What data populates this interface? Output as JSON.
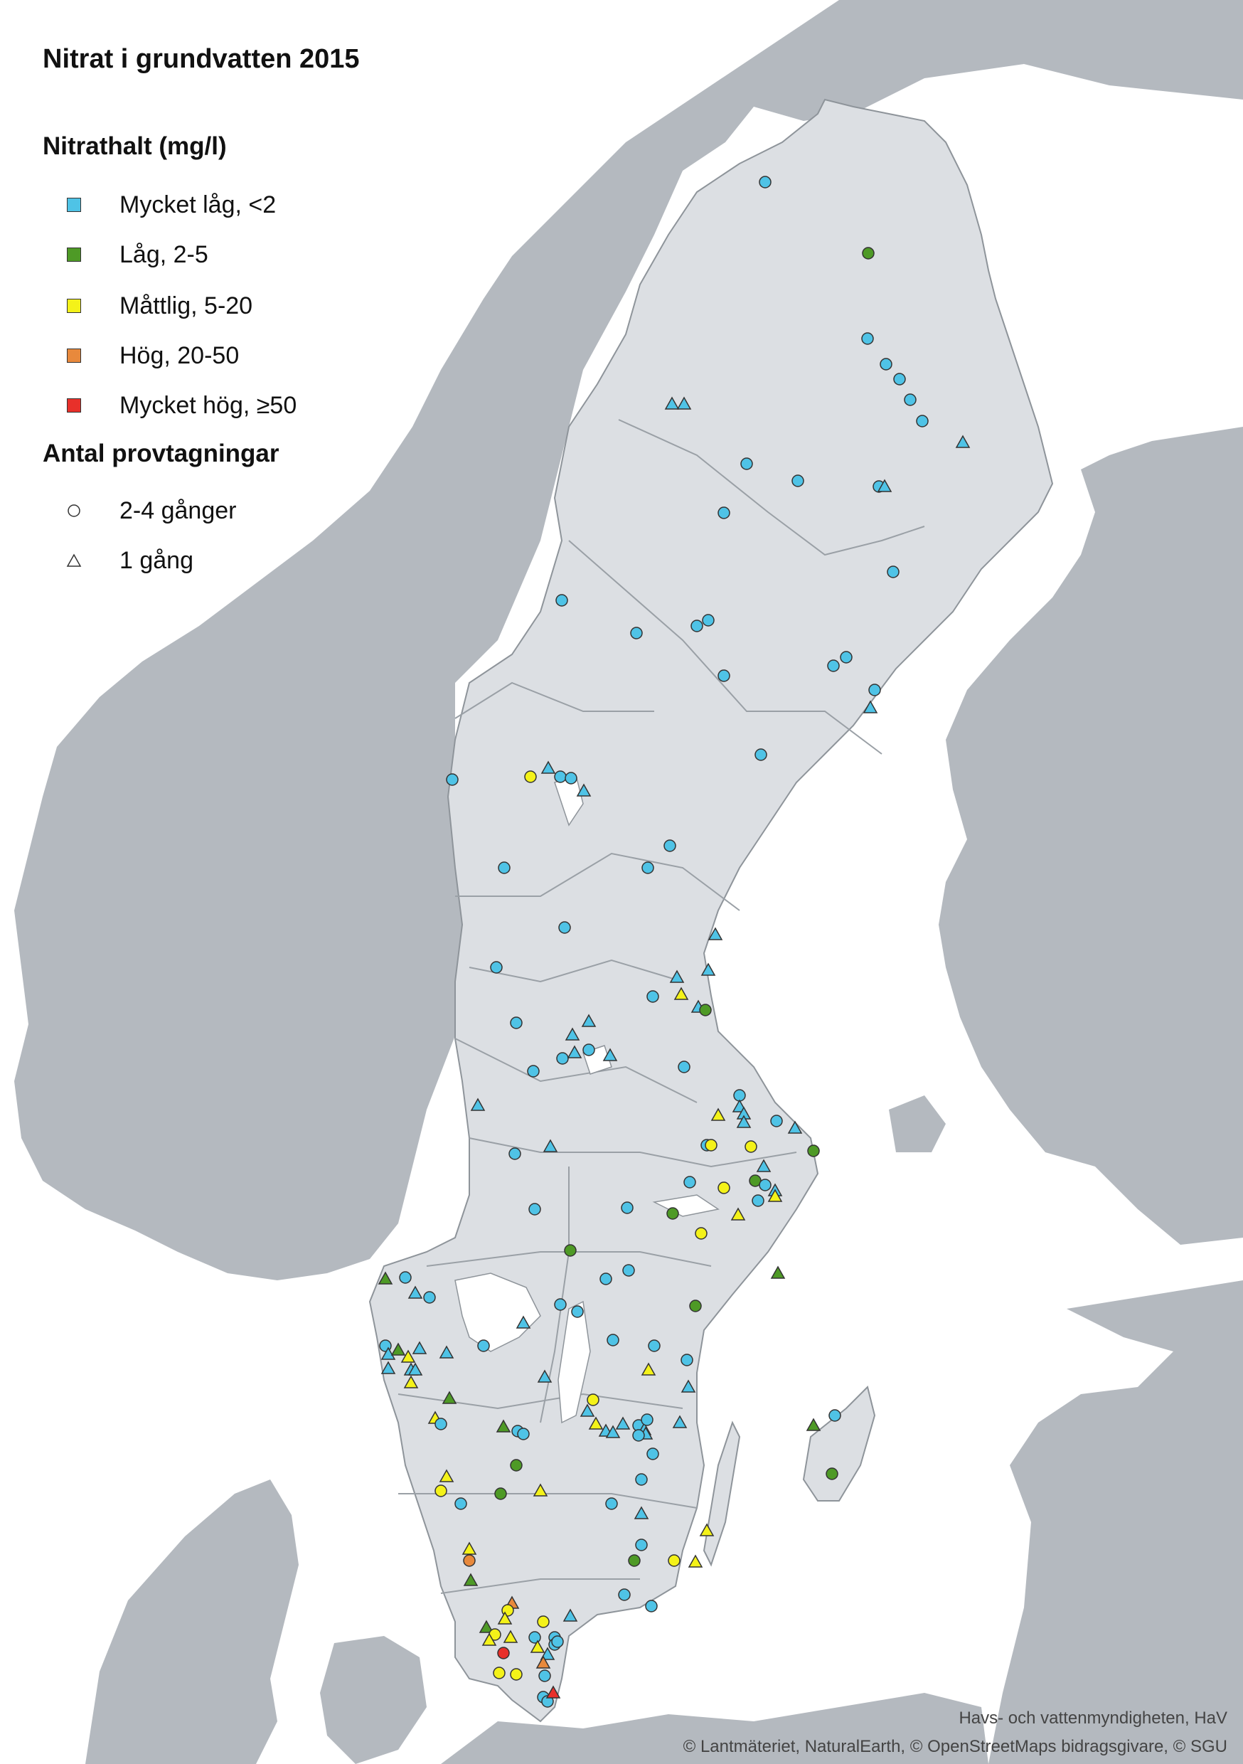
{
  "title": "Nitrat i grundvatten 2015",
  "legend": {
    "concentration_heading": "Nitrathalt (mg/l)",
    "classes": [
      {
        "label": "Mycket låg, <2",
        "color": "#4fc3e6"
      },
      {
        "label": "Låg, 2-5",
        "color": "#4e9a26"
      },
      {
        "label": "Måttlig, 5-20",
        "color": "#f4f219"
      },
      {
        "label": "Hög, 20-50",
        "color": "#e8893c"
      },
      {
        "label": "Mycket hög, ≥50",
        "color": "#e8302a"
      }
    ],
    "sampling_heading": "Antal provtagningar",
    "samplings": [
      {
        "label": "2-4 gånger",
        "shape": "circle"
      },
      {
        "label": "1 gång",
        "shape": "triangle"
      }
    ]
  },
  "credits": {
    "line1": "Havs- och vattenmyndigheten, HaV",
    "line2": "© Lantmäteriet, NaturalEarth, © OpenStreetMaps bidragsgivare, © SGU"
  },
  "colors": {
    "sea": "#ffffff",
    "land_other": "#b4b9bf",
    "land_sweden": "#dcdfe3",
    "border": "#8e949a"
  }
}
